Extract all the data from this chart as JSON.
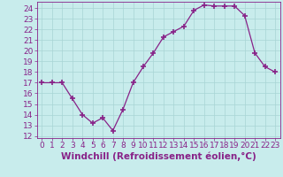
{
  "x": [
    0,
    1,
    2,
    3,
    4,
    5,
    6,
    7,
    8,
    9,
    10,
    11,
    12,
    13,
    14,
    15,
    16,
    17,
    18,
    19,
    20,
    21,
    22,
    23
  ],
  "y": [
    17.0,
    17.0,
    17.0,
    15.5,
    14.0,
    13.2,
    13.7,
    12.5,
    14.5,
    17.0,
    18.5,
    19.8,
    21.3,
    21.8,
    22.3,
    23.8,
    24.3,
    24.2,
    24.2,
    24.2,
    23.3,
    19.8,
    18.5,
    18.0
  ],
  "line_color": "#882288",
  "marker": "+",
  "marker_size": 4,
  "marker_lw": 1.2,
  "bg_color": "#c8ecec",
  "grid_color": "#a8d4d4",
  "xlabel": "Windchill (Refroidissement éolien,°C)",
  "ylabel": "",
  "xlim": [
    -0.5,
    23.5
  ],
  "ylim": [
    11.8,
    24.6
  ],
  "yticks": [
    12,
    13,
    14,
    15,
    16,
    17,
    18,
    19,
    20,
    21,
    22,
    23,
    24
  ],
  "xticks": [
    0,
    1,
    2,
    3,
    4,
    5,
    6,
    7,
    8,
    9,
    10,
    11,
    12,
    13,
    14,
    15,
    16,
    17,
    18,
    19,
    20,
    21,
    22,
    23
  ],
  "axis_color": "#882288",
  "tick_fontsize": 6.5,
  "xlabel_fontsize": 7.5,
  "linewidth": 0.9
}
